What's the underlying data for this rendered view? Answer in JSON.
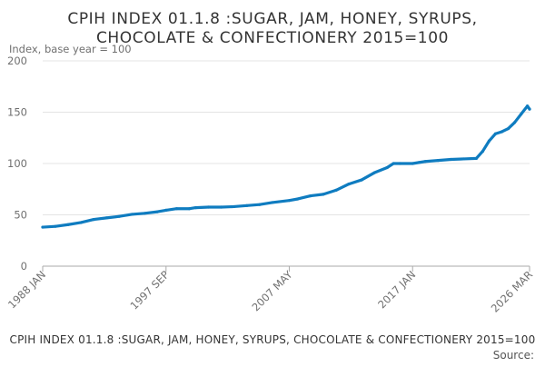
{
  "chart_data": {
    "type": "line",
    "title_lines": [
      "CPIH INDEX 01.1.8 :SUGAR, JAM, HONEY, SYRUPS,",
      "CHOCOLATE & CONFECTIONERY 2015=100"
    ],
    "ylabel": "Index, base year = 100",
    "ylim": [
      0,
      200
    ],
    "y_ticks": [
      0,
      50,
      100,
      150,
      200
    ],
    "x_ticks": [
      {
        "label": "1988 JAN",
        "t": 1988.0
      },
      {
        "label": "1997 SEP",
        "t": 1997.67
      },
      {
        "label": "2007 MAY",
        "t": 2007.33
      },
      {
        "label": "2017 JAN",
        "t": 2017.0
      },
      {
        "label": "2026 MAR",
        "t": 2026.17
      }
    ],
    "xlim": [
      1988.0,
      2026.17
    ],
    "grid": true,
    "series": [
      {
        "name": "CPIH INDEX 01.1.8 :SUGAR, JAM, HONEY, SYRUPS, CHOCOLATE & CONFECTIONERY 2015=100",
        "color": "#0f7cc0",
        "points": [
          [
            1988.0,
            38.0
          ],
          [
            1989.0,
            38.8
          ],
          [
            1990.0,
            40.5
          ],
          [
            1991.0,
            42.5
          ],
          [
            1992.0,
            45.5
          ],
          [
            1993.0,
            47.0
          ],
          [
            1994.0,
            48.5
          ],
          [
            1995.0,
            50.5
          ],
          [
            1996.0,
            51.5
          ],
          [
            1997.0,
            53.0
          ],
          [
            1997.67,
            54.5
          ],
          [
            1998.5,
            56.0
          ],
          [
            1999.5,
            56.0
          ],
          [
            2000.0,
            57.0
          ],
          [
            2001.0,
            57.5
          ],
          [
            2002.0,
            57.5
          ],
          [
            2003.0,
            58.0
          ],
          [
            2004.0,
            59.0
          ],
          [
            2005.0,
            60.0
          ],
          [
            2006.0,
            62.0
          ],
          [
            2007.33,
            64.0
          ],
          [
            2008.0,
            65.5
          ],
          [
            2009.0,
            68.5
          ],
          [
            2010.0,
            70.0
          ],
          [
            2011.0,
            74.0
          ],
          [
            2012.0,
            80.0
          ],
          [
            2013.0,
            84.0
          ],
          [
            2014.0,
            91.0
          ],
          [
            2015.0,
            96.0
          ],
          [
            2015.5,
            100.0
          ],
          [
            2016.0,
            100.0
          ],
          [
            2017.0,
            100.0
          ],
          [
            2017.5,
            101.0
          ],
          [
            2018.0,
            102.0
          ],
          [
            2019.0,
            103.0
          ],
          [
            2020.0,
            104.0
          ],
          [
            2021.0,
            104.5
          ],
          [
            2022.0,
            105.0
          ],
          [
            2022.5,
            112.0
          ],
          [
            2023.0,
            122.0
          ],
          [
            2023.5,
            129.0
          ],
          [
            2024.0,
            131.0
          ],
          [
            2024.5,
            134.0
          ],
          [
            2025.0,
            140.0
          ],
          [
            2025.5,
            148.0
          ],
          [
            2026.0,
            156.0
          ],
          [
            2026.17,
            153.0
          ]
        ]
      }
    ],
    "footer_title": "CPIH INDEX 01.1.8 :SUGAR, JAM, HONEY, SYRUPS, CHOCOLATE & CONFECTIONERY 2015=100",
    "source_label": "Source:"
  }
}
